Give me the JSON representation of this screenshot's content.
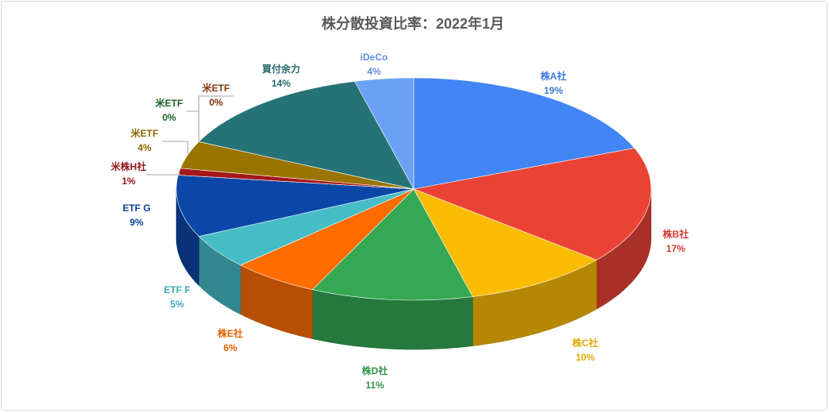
{
  "chart_data": {
    "type": "pie3d",
    "title": "株分散投資比率：2022年1月",
    "categories": [
      "株A社",
      "株B社",
      "株C社",
      "株D社",
      "株E社",
      "ETF F",
      "ETF G",
      "米株H社",
      "米ETF",
      "米ETF",
      "米ETF",
      "買付余力",
      "iDeCo"
    ],
    "values": [
      19,
      17,
      10,
      11,
      6,
      5,
      9,
      1,
      4,
      0,
      0,
      14,
      4
    ],
    "value_labels": [
      "19%",
      "17%",
      "10%",
      "11%",
      "6%",
      "5%",
      "9%",
      "1%",
      "4%",
      "0%",
      "0%",
      "14%",
      "4%"
    ],
    "colors": [
      "#4285f4",
      "#ea4335",
      "#fbbc04",
      "#34a853",
      "#ff6d01",
      "#46bdc6",
      "#0b47a8",
      "#a3181b",
      "#9a7400",
      "#1f6b2a",
      "#8f3b0c",
      "#267377",
      "#6aa1f5"
    ]
  }
}
